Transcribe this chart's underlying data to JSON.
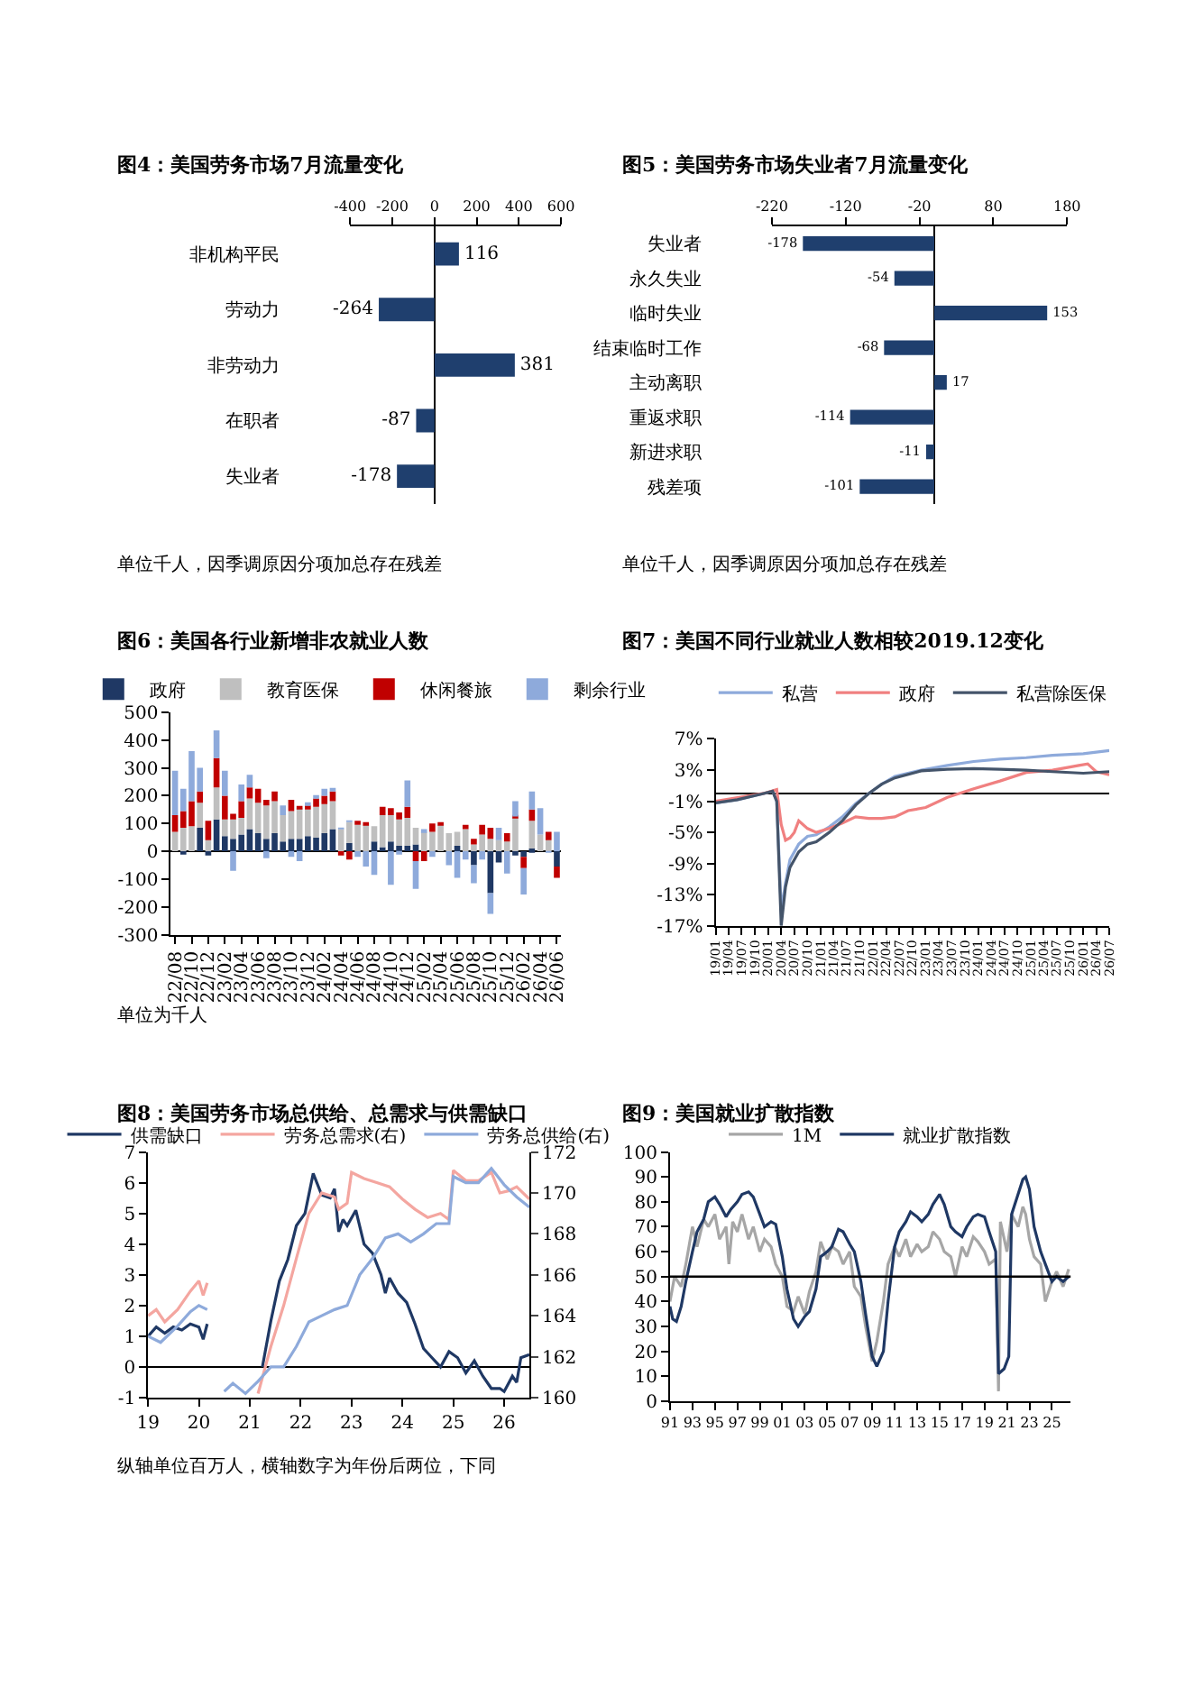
{
  "chart_data": [
    {
      "type": "bar",
      "orientation": "horizontal",
      "title": "图4：美国劳务市场7月流量变化",
      "categories": [
        "非机构平民",
        "劳动力",
        "非劳动力",
        "在职者",
        "失业者"
      ],
      "values": [
        116,
        -264,
        381,
        -87,
        -178
      ],
      "color": "#1f3f6e",
      "xlim": [
        -400,
        600
      ],
      "xticks": [
        -400,
        -200,
        0,
        200,
        400,
        600
      ],
      "data_labels": true,
      "annotations": [
        "单位千人，因季调原因分项加总存在残差"
      ]
    },
    {
      "type": "bar",
      "orientation": "horizontal",
      "title": "图5：美国劳务市场失业者7月流量变化",
      "categories": [
        "失业者",
        "永久失业",
        "临时失业",
        "结束临时工作",
        "主动离职",
        "重返求职",
        "新进求职",
        "残差项"
      ],
      "values": [
        -178,
        -54,
        153,
        -68,
        17,
        -114,
        -11,
        -101
      ],
      "color": "#1f3f6e",
      "xlim": [
        -220,
        180
      ],
      "xticks": [
        -220,
        -120,
        -20,
        80,
        180
      ],
      "data_labels": true,
      "annotations": [
        "单位千人，因季调原因分项加总存在残差"
      ]
    },
    {
      "type": "bar",
      "stacked": true,
      "title": "图6：美国各行业新增非农就业人数",
      "legend": "top",
      "categories": [
        "22/08",
        null,
        "22/10",
        null,
        "22/12",
        null,
        "23/02",
        null,
        "23/04",
        null,
        "23/06",
        null,
        "23/08",
        null,
        "23/10",
        null,
        "23/12",
        null,
        "24/02",
        null,
        "24/04",
        null,
        "24/06",
        null,
        "24/08",
        null,
        "24/10",
        null,
        "24/12",
        null,
        "25/02",
        null,
        "25/04",
        null,
        "25/06",
        null,
        "25/08",
        null,
        "25/10",
        null,
        "25/12",
        null,
        "26/02",
        null,
        "26/04",
        null,
        "26/06"
      ],
      "ylim": [
        -300,
        500
      ],
      "yticks": [
        -300,
        -200,
        -100,
        0,
        100,
        200,
        300,
        400,
        500
      ],
      "annotations": [
        "单位为千人"
      ],
      "series": [
        {
          "name": "政府",
          "color": "#1f3864",
          "values": [
            0,
            -10,
            0,
            85,
            -15,
            115,
            55,
            45,
            60,
            80,
            65,
            45,
            65,
            35,
            45,
            45,
            55,
            50,
            65,
            80,
            0,
            30,
            0,
            0,
            35,
            15,
            35,
            20,
            20,
            25,
            0,
            0,
            0,
            0,
            20,
            0,
            -50,
            0,
            -150,
            -40,
            0,
            -15,
            -20,
            10,
            0,
            0,
            -55
          ]
        },
        {
          "name": "教育医保",
          "color": "#bfbfbf",
          "values": [
            70,
            85,
            90,
            90,
            40,
            115,
            60,
            70,
            60,
            110,
            110,
            120,
            115,
            95,
            100,
            110,
            95,
            110,
            105,
            100,
            80,
            75,
            95,
            95,
            55,
            115,
            95,
            95,
            100,
            60,
            70,
            70,
            95,
            65,
            50,
            80,
            25,
            60,
            45,
            40,
            35,
            120,
            0,
            100,
            60,
            40,
            0
          ]
        },
        {
          "name": "休闲餐旅",
          "color": "#c00000",
          "values": [
            60,
            60,
            90,
            40,
            70,
            105,
            85,
            20,
            60,
            40,
            50,
            20,
            35,
            0,
            40,
            5,
            15,
            30,
            30,
            35,
            -15,
            -30,
            15,
            10,
            0,
            30,
            25,
            25,
            40,
            -35,
            -35,
            30,
            10,
            0,
            0,
            15,
            20,
            35,
            40,
            0,
            30,
            5,
            -40,
            40,
            0,
            30,
            -40
          ]
        },
        {
          "name": "剩余行业",
          "color": "#8eaadb",
          "values": [
            160,
            80,
            180,
            85,
            0,
            100,
            90,
            -70,
            60,
            45,
            0,
            -25,
            0,
            35,
            -20,
            -35,
            10,
            10,
            25,
            10,
            5,
            5,
            -20,
            -55,
            -85,
            0,
            -120,
            -10,
            95,
            -100,
            10,
            -20,
            0,
            -50,
            -95,
            -30,
            -65,
            -30,
            -75,
            45,
            -80,
            55,
            -95,
            65,
            95,
            -5,
            70
          ]
        }
      ]
    },
    {
      "type": "line",
      "title": "图7：美国不同行业就业人数相较2019.12变化",
      "legend": "top",
      "xlim": [
        "2019-01",
        "2026-07"
      ],
      "xticks": [
        {
          "value": "2019-01",
          "label": "19/01"
        },
        {
          "value": "2019-04",
          "label": "19/04"
        },
        {
          "value": "2019-07",
          "label": "19/07"
        },
        {
          "value": "2019-10",
          "label": "19/10"
        },
        {
          "value": "2020-01",
          "label": "20/01"
        },
        {
          "value": "2020-04",
          "label": "20/04"
        },
        {
          "value": "2020-07",
          "label": "20/07"
        },
        {
          "value": "2020-10",
          "label": "20/10"
        },
        {
          "value": "2021-01",
          "label": "21/01"
        },
        {
          "value": "2021-04",
          "label": "21/04"
        },
        {
          "value": "2021-07",
          "label": "21/07"
        },
        {
          "value": "2021-10",
          "label": "21/10"
        },
        {
          "value": "2022-01",
          "label": "22/01"
        },
        {
          "value": "2022-04",
          "label": "22/04"
        },
        {
          "value": "2022-07",
          "label": "22/07"
        },
        {
          "value": "2022-10",
          "label": "22/10"
        },
        {
          "value": "2023-01",
          "label": "23/01"
        },
        {
          "value": "2023-04",
          "label": "23/04"
        },
        {
          "value": "2023-07",
          "label": "23/07"
        },
        {
          "value": "2023-10",
          "label": "23/10"
        },
        {
          "value": "2024-01",
          "label": "24/01"
        },
        {
          "value": "2024-04",
          "label": "24/04"
        },
        {
          "value": "2024-07",
          "label": "24/07"
        },
        {
          "value": "2024-10",
          "label": "24/10"
        },
        {
          "value": "2025-01",
          "label": "25/01"
        },
        {
          "value": "2025-04",
          "label": "25/04"
        },
        {
          "value": "2025-07",
          "label": "25/07"
        },
        {
          "value": "2025-10",
          "label": "25/10"
        },
        {
          "value": "2026-01",
          "label": "26/01"
        },
        {
          "value": "2026-04",
          "label": "26/04"
        },
        {
          "value": "2026-07",
          "label": "26/07"
        }
      ],
      "ylim": [
        -17,
        7
      ],
      "yticks": [
        {
          "value": -17,
          "label": "-17%"
        },
        {
          "value": -13,
          "label": "-13%"
        },
        {
          "value": -9,
          "label": "-9%"
        },
        {
          "value": -5,
          "label": "-5%"
        },
        {
          "value": -1,
          "label": "-1%"
        },
        {
          "value": 3,
          "label": "3%"
        },
        {
          "value": 7,
          "label": "7%"
        }
      ],
      "series": [
        {
          "name": "私营",
          "color": "#8eaadb",
          "x": [
            "2019-01",
            "2019-06",
            "2019-12",
            "2020-02",
            "2020-03",
            "2020-04",
            "2020-05",
            "2020-06",
            "2020-08",
            "2020-10",
            "2020-12",
            "2021-03",
            "2021-06",
            "2021-09",
            "2021-12",
            "2022-03",
            "2022-06",
            "2022-12",
            "2023-06",
            "2023-12",
            "2024-06",
            "2024-12",
            "2025-06",
            "2026-01",
            "2026-07"
          ],
          "values": [
            -1.2,
            -0.8,
            0,
            0.3,
            -1,
            -15,
            -11.5,
            -8.5,
            -6.5,
            -5.5,
            -5.3,
            -4.3,
            -3,
            -1.3,
            0,
            1.2,
            2.2,
            3,
            3.6,
            4.1,
            4.4,
            4.6,
            4.9,
            5.1,
            5.5
          ]
        },
        {
          "name": "政府",
          "color": "#f08080",
          "x": [
            "2019-01",
            "2019-12",
            "2020-03",
            "2020-04",
            "2020-05",
            "2020-06",
            "2020-07",
            "2020-08",
            "2020-10",
            "2020-12",
            "2021-03",
            "2021-06",
            "2021-09",
            "2021-12",
            "2022-03",
            "2022-06",
            "2022-09",
            "2023-01",
            "2023-06",
            "2023-12",
            "2024-06",
            "2024-12",
            "2025-06",
            "2025-12",
            "2026-02",
            "2026-04",
            "2026-07"
          ],
          "values": [
            -1,
            0,
            0.5,
            -4,
            -6,
            -5.7,
            -5,
            -3.5,
            -4.5,
            -5,
            -4.5,
            -3.8,
            -3,
            -3.2,
            -3.2,
            -3,
            -2.2,
            -1.8,
            -0.5,
            0.6,
            1.6,
            2.7,
            3,
            3.6,
            3.8,
            2.8,
            2.4
          ]
        },
        {
          "name": "私营除医保",
          "color": "#44546a",
          "x": [
            "2019-01",
            "2019-06",
            "2019-12",
            "2020-02",
            "2020-03",
            "2020-04",
            "2020-05",
            "2020-06",
            "2020-08",
            "2020-10",
            "2020-12",
            "2021-03",
            "2021-06",
            "2021-09",
            "2021-12",
            "2022-03",
            "2022-06",
            "2022-12",
            "2023-06",
            "2023-12",
            "2024-06",
            "2024-12",
            "2025-06",
            "2026-01",
            "2026-07"
          ],
          "values": [
            -1.2,
            -0.8,
            0,
            0.3,
            -1,
            -17,
            -12,
            -9.5,
            -7.5,
            -6.5,
            -6.2,
            -5,
            -3.5,
            -1.5,
            0,
            1.2,
            2,
            2.9,
            3.1,
            3.2,
            3.1,
            3,
            2.8,
            2.6,
            2.8
          ]
        }
      ]
    },
    {
      "type": "line",
      "title": "图8：美国劳务市场总供给、总需求与供需缺口",
      "legend": "top",
      "xlim": [
        "2019-01",
        "2026-07"
      ],
      "xticks": [
        {
          "value": "2019-01",
          "label": "19"
        },
        {
          "value": "2020-01",
          "label": "20"
        },
        {
          "value": "2021-01",
          "label": "21"
        },
        {
          "value": "2022-01",
          "label": "22"
        },
        {
          "value": "2023-01",
          "label": "23"
        },
        {
          "value": "2024-01",
          "label": "24"
        },
        {
          "value": "2025-01",
          "label": "25"
        },
        {
          "value": "2026-01",
          "label": "26"
        }
      ],
      "ylim": [
        -1,
        7
      ],
      "yticks": [
        -1,
        0,
        1,
        2,
        3,
        4,
        5,
        6,
        7
      ],
      "y2lim": [
        160,
        172
      ],
      "y2ticks": [
        160,
        162,
        164,
        166,
        168,
        170,
        172
      ],
      "annotations": [
        "纵轴单位百万人，横轴数字为年份后两位，下同"
      ],
      "series": [
        {
          "name": "供需缺口",
          "color": "#1f3864",
          "x": [
            "2019-01",
            "2019-03",
            "2019-05",
            "2019-07",
            "2019-09",
            "2019-11",
            "2020-01",
            "2020-02",
            "2020-03",
            "2020-04",
            "2021-03",
            "2021-04",
            "2021-06",
            "2021-08",
            "2021-10",
            "2021-12",
            "2022-02",
            "2022-04",
            "2022-06",
            "2022-08",
            "2022-09",
            "2022-10",
            "2022-11",
            "2022-12",
            "2023-02",
            "2023-04",
            "2023-06",
            "2023-08",
            "2023-09",
            "2023-10",
            "2023-12",
            "2024-02",
            "2024-04",
            "2024-06",
            "2024-08",
            "2024-10",
            "2024-12",
            "2025-02",
            "2025-04",
            "2025-06",
            "2025-08",
            "2025-10",
            "2025-12",
            "2026-01",
            "2026-03",
            "2026-04",
            "2026-05",
            "2026-07"
          ],
          "values": [
            1.0,
            1.3,
            1.1,
            1.3,
            1.2,
            1.4,
            1.3,
            0.9,
            1.4,
            null,
            null,
            0,
            1.5,
            2.8,
            3.5,
            4.6,
            5.0,
            6.3,
            5.6,
            5.5,
            5.8,
            4.4,
            4.8,
            4.6,
            5.1,
            4.0,
            3.7,
            3.0,
            2.4,
            2.9,
            2.4,
            2.1,
            1.4,
            0.6,
            0.3,
            0,
            0.5,
            0.3,
            -0.2,
            0.2,
            -0.3,
            -0.7,
            -0.7,
            -0.8,
            -0.3,
            -0.5,
            0.3,
            0.4
          ]
        },
        {
          "name": "劳务总需求(右)",
          "color": "#f4a6a0",
          "axis": "y2",
          "x": [
            "2019-01",
            "2019-03",
            "2019-05",
            "2019-08",
            "2019-11",
            "2020-01",
            "2020-02",
            "2020-03",
            "2020-04",
            "2021-02",
            "2021-03",
            "2021-06",
            "2021-09",
            "2021-12",
            "2022-03",
            "2022-06",
            "2022-09",
            "2022-10",
            "2022-12",
            "2023-01",
            "2023-04",
            "2023-07",
            "2023-10",
            "2024-01",
            "2024-04",
            "2024-07",
            "2024-10",
            "2024-12",
            "2025-01",
            "2025-04",
            "2025-07",
            "2025-10",
            "2025-12",
            "2026-02",
            "2026-04",
            "2026-07"
          ],
          "values": [
            164,
            164.3,
            163.7,
            164.3,
            165.2,
            165.7,
            165,
            165.6,
            null,
            null,
            160.2,
            162.5,
            164.5,
            166.8,
            169,
            170,
            169.8,
            169.2,
            169.5,
            171,
            170.7,
            170.5,
            170.3,
            169.7,
            169.2,
            168.8,
            169,
            168.7,
            171.1,
            170.6,
            170.6,
            171,
            170,
            170.1,
            170.3,
            169.7
          ]
        },
        {
          "name": "劳务总供给(右)",
          "color": "#8eaadb",
          "axis": "y2",
          "x": [
            "2019-01",
            "2019-04",
            "2019-08",
            "2019-11",
            "2020-01",
            "2020-03",
            "2020-04",
            "2020-06",
            "2020-07",
            "2020-09",
            "2020-12",
            "2021-03",
            "2021-06",
            "2021-09",
            "2021-12",
            "2022-03",
            "2022-06",
            "2022-09",
            "2022-12",
            "2023-03",
            "2023-06",
            "2023-09",
            "2023-12",
            "2024-03",
            "2024-06",
            "2024-09",
            "2024-12",
            "2025-01",
            "2025-04",
            "2025-07",
            "2025-10",
            "2026-01",
            "2026-04",
            "2026-07"
          ],
          "values": [
            163,
            162.7,
            163.5,
            164.2,
            164.5,
            164.3,
            null,
            null,
            160.3,
            160.7,
            160.2,
            160.8,
            161.5,
            161.5,
            162.5,
            163.7,
            164,
            164.3,
            164.5,
            166,
            166.8,
            167.8,
            168,
            167.6,
            168,
            168.5,
            168.5,
            170.8,
            170.5,
            170.5,
            171.2,
            170.4,
            169.8,
            169.3
          ]
        }
      ]
    },
    {
      "type": "line",
      "title": "图9：美国就业扩散指数",
      "legend": "top",
      "xlim": [
        "1991-01",
        "2026-09"
      ],
      "xticks": [
        {
          "value": "1991-01",
          "label": "91"
        },
        {
          "value": "1993-01",
          "label": "93"
        },
        {
          "value": "1995-01",
          "label": "95"
        },
        {
          "value": "1997-01",
          "label": "97"
        },
        {
          "value": "1999-01",
          "label": "99"
        },
        {
          "value": "2001-01",
          "label": "01"
        },
        {
          "value": "2003-01",
          "label": "03"
        },
        {
          "value": "2005-01",
          "label": "05"
        },
        {
          "value": "2007-01",
          "label": "07"
        },
        {
          "value": "2009-01",
          "label": "09"
        },
        {
          "value": "2011-01",
          "label": "11"
        },
        {
          "value": "2013-01",
          "label": "13"
        },
        {
          "value": "2015-01",
          "label": "15"
        },
        {
          "value": "2017-01",
          "label": "17"
        },
        {
          "value": "2019-01",
          "label": "19"
        },
        {
          "value": "2021-01",
          "label": "21"
        },
        {
          "value": "2023-01",
          "label": "23"
        },
        {
          "value": "2025-01",
          "label": "25"
        }
      ],
      "ylim": [
        0,
        100
      ],
      "yticks": [
        0,
        10,
        20,
        30,
        40,
        50,
        60,
        70,
        80,
        90,
        100
      ],
      "ref_lines": [
        {
          "axis": "y",
          "value": 50,
          "color": "#000000"
        }
      ],
      "series": [
        {
          "name": "1M",
          "color": "#a6a6a6",
          "x": [
            "1991-01",
            "1991-06",
            "1992-01",
            "1992-06",
            "1993-01",
            "1993-06",
            "1994-01",
            "1994-06",
            "1995-01",
            "1995-06",
            "1996-01",
            "1996-04",
            "1996-08",
            "1997-01",
            "1997-06",
            "1998-01",
            "1998-06",
            "1999-01",
            "1999-06",
            "2000-01",
            "2000-06",
            "2001-01",
            "2001-06",
            "2002-01",
            "2002-06",
            "2003-01",
            "2003-06",
            "2004-01",
            "2004-06",
            "2005-01",
            "2005-06",
            "2006-01",
            "2006-06",
            "2007-01",
            "2007-06",
            "2008-01",
            "2008-06",
            "2009-01",
            "2009-06",
            "2010-01",
            "2010-06",
            "2011-01",
            "2011-06",
            "2012-01",
            "2012-06",
            "2013-01",
            "2013-06",
            "2014-01",
            "2014-06",
            "2015-01",
            "2015-06",
            "2016-01",
            "2016-06",
            "2017-01",
            "2017-06",
            "2018-01",
            "2018-06",
            "2019-01",
            "2019-06",
            "2020-01",
            "2020-04",
            "2020-06",
            "2021-01",
            "2021-06",
            "2022-01",
            "2022-06",
            "2022-09",
            "2023-01",
            "2023-06",
            "2024-01",
            "2024-06",
            "2025-01",
            "2025-06",
            "2026-01",
            "2026-07"
          ],
          "values": [
            40,
            50,
            46,
            55,
            70,
            62,
            73,
            70,
            75,
            65,
            70,
            55,
            72,
            68,
            75,
            65,
            70,
            60,
            65,
            62,
            55,
            50,
            38,
            36,
            42,
            35,
            44,
            52,
            64,
            57,
            62,
            60,
            55,
            60,
            46,
            42,
            30,
            16,
            24,
            40,
            55,
            62,
            58,
            65,
            58,
            63,
            60,
            62,
            68,
            65,
            60,
            58,
            50,
            62,
            58,
            66,
            64,
            60,
            55,
            57,
            4,
            72,
            60,
            75,
            70,
            78,
            75,
            65,
            58,
            55,
            40,
            48,
            52,
            46,
            53
          ]
        },
        {
          "name": "就业扩散指数",
          "color": "#1f3864",
          "x": [
            "1991-01",
            "1991-04",
            "1991-08",
            "1992-01",
            "1992-06",
            "1993-01",
            "1993-06",
            "1994-01",
            "1994-06",
            "1995-01",
            "1995-06",
            "1996-01",
            "1996-06",
            "1997-01",
            "1997-06",
            "1998-01",
            "1998-06",
            "1999-01",
            "1999-06",
            "2000-01",
            "2000-06",
            "2001-01",
            "2001-06",
            "2002-01",
            "2002-06",
            "2003-01",
            "2003-06",
            "2004-01",
            "2004-06",
            "2005-01",
            "2005-06",
            "2006-01",
            "2006-06",
            "2007-01",
            "2007-06",
            "2008-01",
            "2008-06",
            "2009-01",
            "2009-06",
            "2010-01",
            "2010-06",
            "2011-01",
            "2011-06",
            "2012-01",
            "2012-06",
            "2013-01",
            "2013-06",
            "2014-01",
            "2014-06",
            "2015-01",
            "2015-06",
            "2016-01",
            "2016-06",
            "2017-01",
            "2017-06",
            "2018-01",
            "2018-06",
            "2019-01",
            "2019-06",
            "2020-01",
            "2020-04",
            "2020-10",
            "2021-03",
            "2021-06",
            "2021-12",
            "2022-06",
            "2022-09",
            "2023-01",
            "2023-06",
            "2024-01",
            "2024-06",
            "2025-01",
            "2025-06",
            "2026-01",
            "2026-07"
          ],
          "values": [
            38,
            33,
            32,
            38,
            48,
            60,
            68,
            73,
            80,
            82,
            79,
            74,
            77,
            80,
            83,
            84,
            82,
            75,
            70,
            72,
            71,
            58,
            45,
            33,
            30,
            34,
            36,
            45,
            58,
            60,
            62,
            69,
            68,
            63,
            60,
            48,
            35,
            18,
            14,
            20,
            40,
            62,
            68,
            72,
            76,
            74,
            72,
            75,
            79,
            83,
            79,
            70,
            68,
            66,
            70,
            74,
            75,
            74,
            68,
            60,
            11,
            13,
            18,
            75,
            82,
            89,
            90,
            85,
            70,
            60,
            55,
            48,
            50,
            48,
            50
          ]
        }
      ]
    }
  ]
}
